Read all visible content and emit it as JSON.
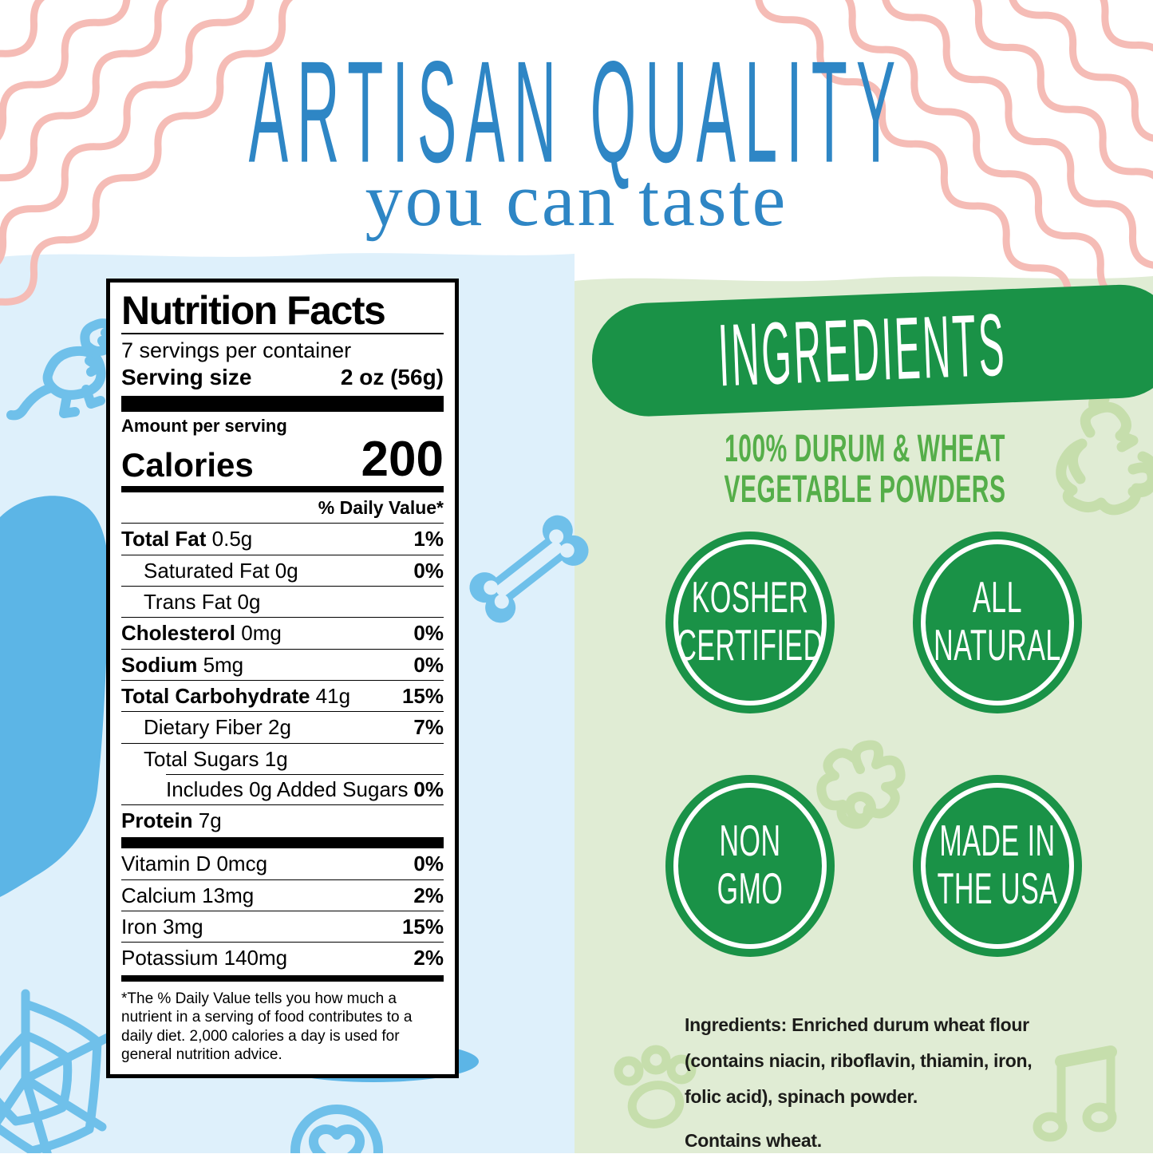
{
  "header": {
    "title": "ARTISAN QUALITY",
    "subtitle": "you can taste"
  },
  "nutrition_label": {
    "title": "Nutrition Facts",
    "servings_per_container": "7 servings per container",
    "serving_size_label": "Serving size",
    "serving_size_value": "2 oz (56g)",
    "amount_per_serving": "Amount per serving",
    "calories_label": "Calories",
    "calories_value": "200",
    "daily_value_header": "% Daily Value*",
    "rows": [
      {
        "name": "Total Fat",
        "bold": true,
        "amount": "0.5g",
        "dv": "1%",
        "indent": 0
      },
      {
        "name": "Saturated Fat",
        "bold": false,
        "amount": "0g",
        "dv": "0%",
        "indent": 1
      },
      {
        "name": "Trans Fat",
        "bold": false,
        "amount": "0g",
        "dv": "",
        "indent": 1
      },
      {
        "name": "Cholesterol",
        "bold": true,
        "amount": "0mg",
        "dv": "0%",
        "indent": 0
      },
      {
        "name": "Sodium",
        "bold": true,
        "amount": "5mg",
        "dv": "0%",
        "indent": 0
      },
      {
        "name": "Total Carbohydrate",
        "bold": true,
        "amount": "41g",
        "dv": "15%",
        "indent": 0
      },
      {
        "name": "Dietary Fiber",
        "bold": false,
        "amount": "2g",
        "dv": "7%",
        "indent": 1
      },
      {
        "name": "Total Sugars",
        "bold": false,
        "amount": "1g",
        "dv": "",
        "indent": 1
      },
      {
        "name": "Includes 0g Added Sugars",
        "bold": false,
        "amount": "",
        "dv": "0%",
        "indent": 2
      },
      {
        "name": "Protein",
        "bold": true,
        "amount": "7g",
        "dv": "",
        "indent": 0
      }
    ],
    "vitamin_rows": [
      {
        "name": "Vitamin D",
        "amount": "0mcg",
        "dv": "0%"
      },
      {
        "name": "Calcium",
        "amount": "13mg",
        "dv": "2%"
      },
      {
        "name": "Iron",
        "amount": "3mg",
        "dv": "15%"
      },
      {
        "name": "Potassium",
        "amount": "140mg",
        "dv": "2%"
      }
    ],
    "footnote": "*The % Daily Value tells you how much a nutrient in a serving of food contributes to a daily diet. 2,000 calories a day is used for general nutrition advice."
  },
  "ingredients_panel": {
    "banner": "INGREDIENTS",
    "subtitle_line1": "100% DURUM & WHEAT",
    "subtitle_line2": "VEGETABLE POWDERS",
    "badges": [
      {
        "id": "kosher-certified",
        "line1": "KOSHER",
        "line2": "CERTIFIED"
      },
      {
        "id": "all-natural",
        "line1": "ALL",
        "line2": "NATURAL"
      },
      {
        "id": "non-gmo",
        "line1": "NON",
        "line2": "GMO"
      },
      {
        "id": "made-in-usa",
        "line1": "MADE IN",
        "line2": "THE USA"
      }
    ],
    "ingredients_lines": [
      "Ingredients: Enriched durum wheat flour",
      "(contains niacin, riboflavin, thiamin, iron,",
      "folic acid), spinach powder."
    ],
    "contains_text": "Contains wheat."
  },
  "decorations": [
    "pink-wavy-lines-icon",
    "dinosaur-icon",
    "bone-icon",
    "spiderweb-icon",
    "heart-ball-icon",
    "rooster-icon",
    "flower-pasta-icon",
    "paw-print-icon",
    "music-notes-icon",
    "blue-blob",
    "blue-panel",
    "green-panel"
  ],
  "colors": {
    "title_blue": "#2e86c5",
    "panel_blue": "#def0fb",
    "doodle_blue": "#6fc0ea",
    "blob_blue": "#5cb5e6",
    "panel_green": "#e0ecd4",
    "dark_green": "#1a9247",
    "text_green": "#55ae49",
    "doodle_green": "#c6deac",
    "pink": "#f5bcb6",
    "label_text": "#000000",
    "body_text": "#1c1c1a"
  }
}
